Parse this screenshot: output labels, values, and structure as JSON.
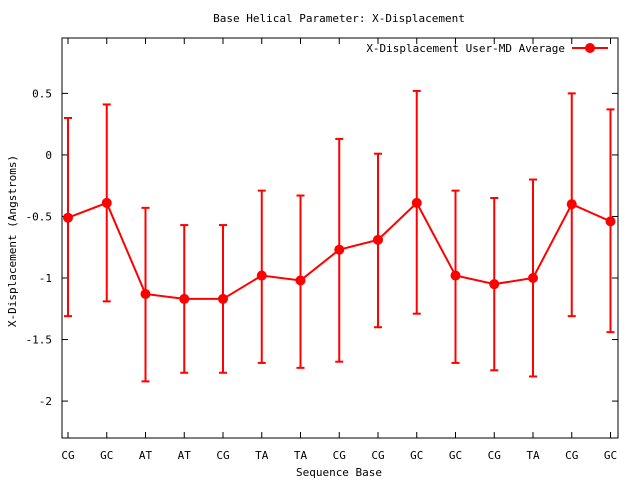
{
  "chart_data": {
    "type": "line",
    "title": "Base  Helical Parameter: X-Displacement",
    "xlabel": "Sequence Base",
    "ylabel": "X-Displacement (Angstroms)",
    "categories": [
      "CG",
      "GC",
      "AT",
      "AT",
      "CG",
      "TA",
      "TA",
      "CG",
      "CG",
      "GC",
      "GC",
      "CG",
      "TA",
      "CG",
      "GC"
    ],
    "ylim": [
      -2.3,
      0.95
    ],
    "yticks": [
      0.5,
      0,
      -0.5,
      -1,
      -1.5,
      -2
    ],
    "ytick_labels": [
      "0.5",
      "0",
      "-0.5",
      "-1",
      "-1.5",
      "-2"
    ],
    "grid": false,
    "legend_position": "top-right",
    "series": [
      {
        "name": "X-Displacement User-MD Average",
        "color": "#ff0000",
        "values": [
          -0.51,
          -0.39,
          -1.13,
          -1.17,
          -1.17,
          -0.98,
          -1.02,
          -0.77,
          -0.69,
          -0.39,
          -0.98,
          -1.05,
          -1.0,
          -0.4,
          -0.54
        ],
        "error_low": [
          -1.31,
          -1.19,
          -1.84,
          -1.77,
          -1.77,
          -1.69,
          -1.73,
          -1.68,
          -1.4,
          -1.29,
          -1.69,
          -1.75,
          -1.8,
          -1.31,
          -1.44
        ],
        "error_high": [
          0.3,
          0.41,
          -0.43,
          -0.57,
          -0.57,
          -0.29,
          -0.33,
          0.13,
          0.01,
          0.52,
          -0.29,
          -0.35,
          -0.2,
          0.5,
          0.37
        ]
      }
    ]
  }
}
